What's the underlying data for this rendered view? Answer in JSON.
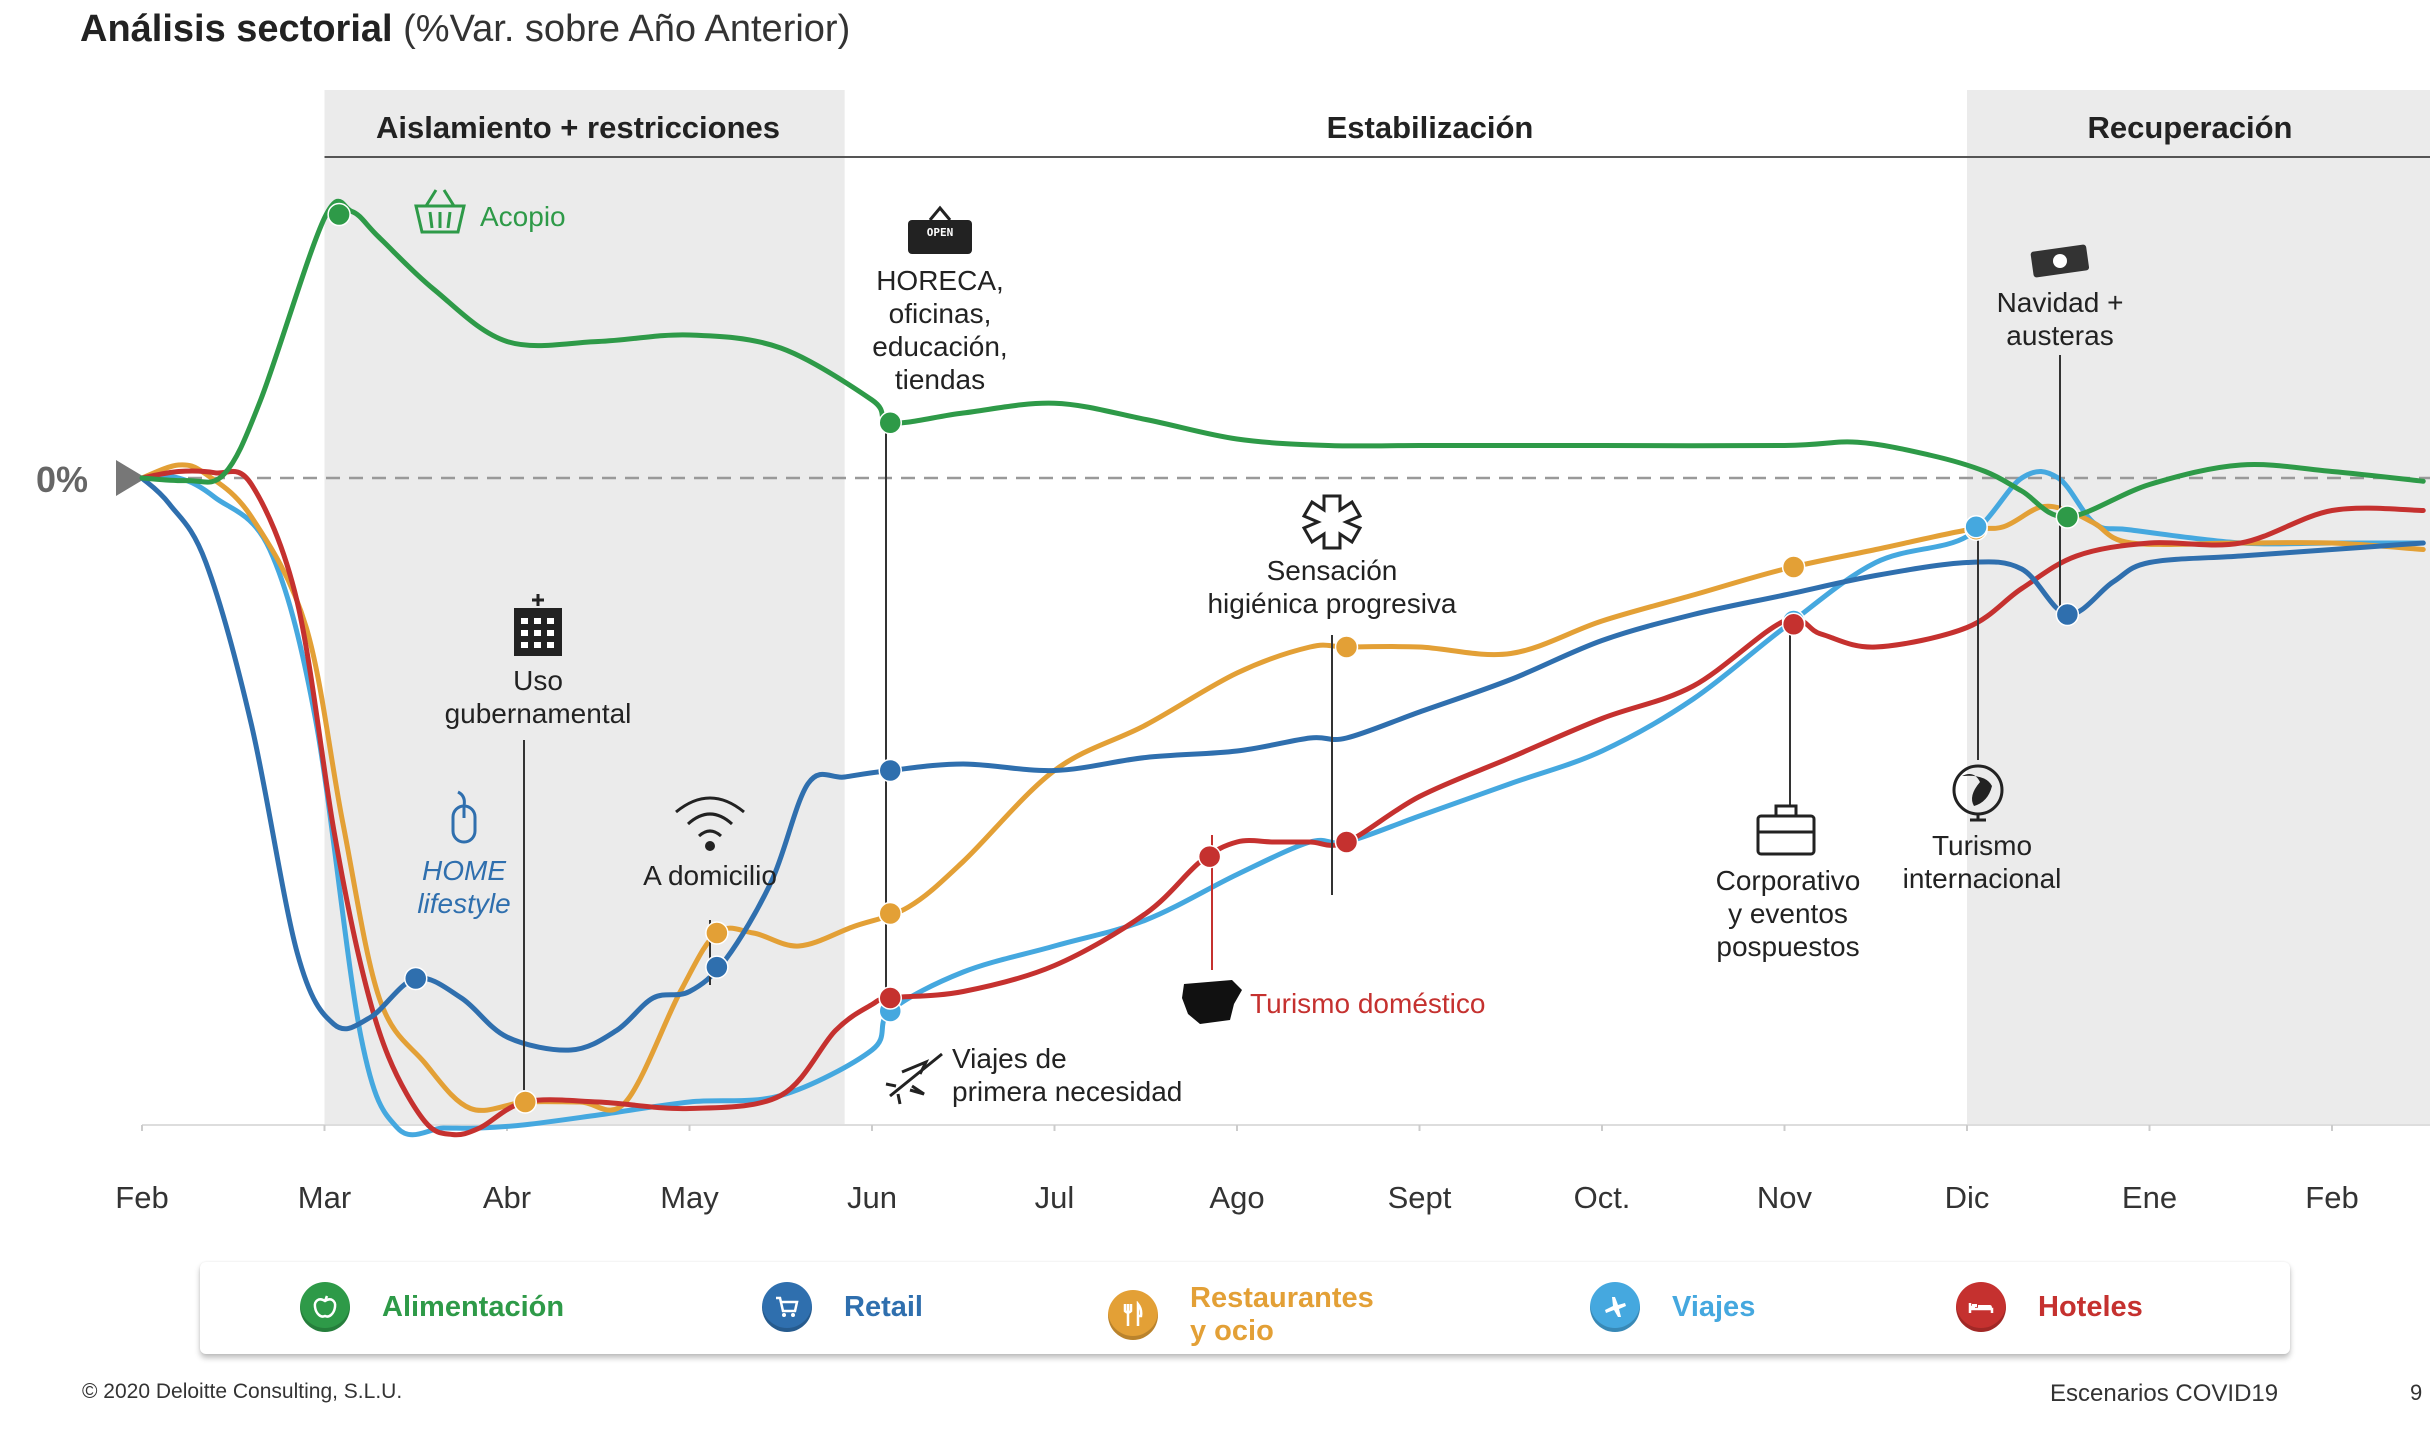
{
  "title": {
    "main": "Análisis sectorial",
    "sub": "(%Var. sobre Año Anterior)"
  },
  "phases": [
    {
      "label": "Aislamiento + restricciones",
      "shaded": true
    },
    {
      "label": "Estabilización",
      "shaded": false
    },
    {
      "label": "Recuperación",
      "shaded": true
    }
  ],
  "zero_label": "0%",
  "chart_data": {
    "type": "line",
    "x_ticks": [
      "Feb",
      "Mar",
      "Abr",
      "May",
      "Jun",
      "Jul",
      "Ago",
      "Sept",
      "Oct.",
      "Nov",
      "Dic",
      "Ene",
      "Feb"
    ],
    "y_unit": "% var. sobre año anterior",
    "ylim": [
      -100,
      45
    ],
    "grid": false,
    "zero_line": "dashed",
    "series": [
      {
        "name": "Alimentación",
        "color": "#2e9a48",
        "x": [
          0,
          0.25,
          0.45,
          0.65,
          1.0,
          1.15,
          1.3,
          1.6,
          2.0,
          2.5,
          3.0,
          3.5,
          4.0,
          4.1,
          4.5,
          5.0,
          5.5,
          6.0,
          6.5,
          7.0,
          7.5,
          8.0,
          9.0,
          9.4,
          9.8,
          10.1,
          10.3,
          10.55,
          11.0,
          11.5,
          12.0,
          12.5
        ],
        "y": [
          0,
          -0.4,
          0.6,
          12,
          40,
          41,
          37,
          29,
          21,
          21,
          22,
          20,
          12,
          8.5,
          10,
          11.5,
          9,
          6,
          5,
          5,
          5,
          5,
          5,
          5.5,
          3.5,
          1,
          -2,
          -6,
          -1,
          2,
          1,
          -0.5
        ]
      },
      {
        "name": "Retail",
        "color": "#2f6fae",
        "x": [
          0,
          0.15,
          0.35,
          0.6,
          0.85,
          1.05,
          1.25,
          1.5,
          1.75,
          2.0,
          2.35,
          2.6,
          2.8,
          3.0,
          3.2,
          3.45,
          3.65,
          3.85,
          4.1,
          4.5,
          5.0,
          5.5,
          6.0,
          6.4,
          6.6,
          7.0,
          7.5,
          8.0,
          8.5,
          9.0,
          9.5,
          10.0,
          10.3,
          10.55,
          10.8,
          11.0,
          11.5,
          12.0,
          12.5
        ],
        "y": [
          0,
          -4,
          -13,
          -38,
          -73,
          -84,
          -83,
          -77,
          -80,
          -86,
          -88,
          -85,
          -80,
          -79,
          -74,
          -62,
          -47,
          -46,
          -45,
          -44,
          -45,
          -43,
          -42,
          -40,
          -40,
          -36,
          -31,
          -25,
          -21,
          -18,
          -15,
          -13,
          -14,
          -21,
          -16,
          -13,
          -12,
          -11,
          -10
        ]
      },
      {
        "name": "Restaurantes y ocio",
        "color": "#e3a036",
        "x": [
          0,
          0.2,
          0.35,
          0.6,
          0.9,
          1.1,
          1.3,
          1.55,
          1.8,
          2.1,
          2.4,
          2.65,
          2.95,
          3.15,
          3.35,
          3.6,
          3.9,
          4.2,
          4.5,
          5.0,
          5.5,
          6.0,
          6.4,
          6.6,
          7.0,
          7.5,
          8.0,
          8.5,
          9.0,
          9.5,
          10.0,
          10.2,
          10.4,
          10.55,
          10.7,
          10.9,
          11.5,
          12.0,
          12.5
        ],
        "y": [
          0,
          2,
          0.6,
          -6,
          -23,
          -53,
          -80,
          -90,
          -97,
          -96,
          -96,
          -96,
          -79,
          -70,
          -70,
          -72,
          -69,
          -66,
          -59,
          -45,
          -38,
          -30,
          -26,
          -26,
          -26,
          -27,
          -22,
          -18,
          -14,
          -11,
          -8,
          -7.5,
          -4.5,
          -5,
          -7,
          -10,
          -10,
          -10,
          -11
        ]
      },
      {
        "name": "Viajes",
        "color": "#45a8df",
        "x": [
          0,
          0.2,
          0.4,
          0.7,
          0.95,
          1.2,
          1.4,
          1.65,
          1.85,
          2.1,
          2.5,
          3.0,
          3.5,
          4.0,
          4.1,
          4.5,
          5.0,
          5.5,
          6.0,
          6.4,
          6.6,
          7.0,
          7.5,
          8.0,
          8.5,
          9.0,
          9.5,
          10.0,
          10.3,
          10.5,
          10.7,
          10.9,
          11.5,
          12.0,
          12.5
        ],
        "y": [
          0,
          0,
          -3,
          -11,
          -37,
          -86,
          -100,
          -100,
          -100,
          -99.5,
          -98,
          -96,
          -95,
          -88,
          -82,
          -76,
          -72,
          -68,
          -61,
          -56,
          -56,
          -52,
          -47,
          -42,
          -34,
          -23,
          -13,
          -9,
          0,
          0,
          -7,
          -8,
          -10,
          -10,
          -10
        ]
      },
      {
        "name": "Hoteles",
        "color": "#c5312f",
        "x": [
          0,
          0.2,
          0.4,
          0.6,
          0.85,
          1.05,
          1.2,
          1.35,
          1.55,
          1.7,
          1.85,
          2.1,
          2.5,
          3.0,
          3.5,
          3.8,
          4.0,
          4.1,
          4.5,
          5.0,
          5.5,
          5.8,
          6.0,
          6.2,
          6.4,
          6.6,
          7.0,
          7.5,
          8.0,
          8.5,
          9.0,
          9.2,
          9.5,
          10.0,
          10.3,
          10.6,
          11.0,
          11.5,
          12.0,
          12.5
        ],
        "y": [
          0,
          1,
          0.8,
          -1,
          -19,
          -54,
          -75,
          -89,
          -99,
          -101,
          -100,
          -96,
          -96,
          -97,
          -95,
          -85,
          -81,
          -80,
          -79,
          -75,
          -67,
          -59,
          -56,
          -56,
          -56,
          -56,
          -49,
          -43,
          -37,
          -32,
          -22,
          -24,
          -26,
          -23,
          -17,
          -12,
          -10,
          -10,
          -5,
          -5
        ]
      }
    ],
    "annotations": [
      {
        "text": "Acopio",
        "series": "Alimentación",
        "x": 1.08,
        "icon": "basket-icon"
      },
      {
        "text": "HORECA,\noficinas,\neducación,\ntiendas",
        "series": "Alimentación",
        "x": 4.1,
        "icon": "open-sign-icon"
      },
      {
        "text": "Navidad +\nausteras",
        "series": "Alimentación",
        "x": 10.55,
        "icon": "money-icon"
      },
      {
        "text": "Uso\ngubernamental",
        "series": "Restaurantes y ocio",
        "x": 2.1,
        "icon": "building-icon"
      },
      {
        "text": "HOME\nlifestyle",
        "series": "Retail",
        "x": 1.5,
        "icon": "mouse-icon"
      },
      {
        "text": "A domicilio",
        "series": "Retail",
        "x": 3.15,
        "icon": "wifi-icon"
      },
      {
        "text": "Viajes de\nprimera necesidad",
        "series": "Viajes",
        "x": 4.1,
        "icon": "airplane-icon"
      },
      {
        "text": "Sensación\nhigiénica progresiva",
        "series": "Restaurantes y ocio",
        "x": 6.6,
        "icon": "hygiene-icon"
      },
      {
        "text": "Turismo doméstico",
        "series": "Hoteles",
        "x": 5.8,
        "icon": "spain-map-icon"
      },
      {
        "text": "Corporativo\ny eventos\npospuestos",
        "series": "Viajes",
        "x": 9.05,
        "icon": "briefcase-icon"
      },
      {
        "text": "Turismo\ninternacional",
        "series": "Viajes",
        "x": 10.05,
        "icon": "globe-icon"
      }
    ],
    "markers": [
      {
        "series": "Alimentación",
        "x": 1.08
      },
      {
        "series": "Alimentación",
        "x": 4.1
      },
      {
        "series": "Alimentación",
        "x": 10.55
      },
      {
        "series": "Retail",
        "x": 1.5
      },
      {
        "series": "Retail",
        "x": 3.15
      },
      {
        "series": "Retail",
        "x": 4.1
      },
      {
        "series": "Retail",
        "x": 10.55
      },
      {
        "series": "Restaurantes y ocio",
        "x": 2.1
      },
      {
        "series": "Restaurantes y ocio",
        "x": 3.15
      },
      {
        "series": "Restaurantes y ocio",
        "x": 4.1
      },
      {
        "series": "Restaurantes y ocio",
        "x": 6.6
      },
      {
        "series": "Restaurantes y ocio",
        "x": 9.05
      },
      {
        "series": "Restaurantes y ocio",
        "x": 10.05
      },
      {
        "series": "Viajes",
        "x": 4.1
      },
      {
        "series": "Viajes",
        "x": 6.6
      },
      {
        "series": "Viajes",
        "x": 9.05
      },
      {
        "series": "Viajes",
        "x": 10.05
      },
      {
        "series": "Hoteles",
        "x": 4.1
      },
      {
        "series": "Hoteles",
        "x": 5.85
      },
      {
        "series": "Hoteles",
        "x": 6.6
      },
      {
        "series": "Hoteles",
        "x": 9.05
      }
    ]
  },
  "legend": [
    {
      "label": "Alimentación",
      "color": "#2e9a48",
      "icon": "apple-icon"
    },
    {
      "label": "Retail",
      "color": "#2f6fae",
      "icon": "cart-icon"
    },
    {
      "label": "Restaurantes\ny ocio",
      "color": "#e3a036",
      "icon": "cutlery-icon"
    },
    {
      "label": "Viajes",
      "color": "#45a8df",
      "icon": "airplane-icon"
    },
    {
      "label": "Hoteles",
      "color": "#c5312f",
      "icon": "bed-icon"
    }
  ],
  "footer": {
    "copyright": "© 2020 Deloitte Consulting, S.L.U.",
    "deck": "Escenarios COVID19",
    "page": "9"
  }
}
